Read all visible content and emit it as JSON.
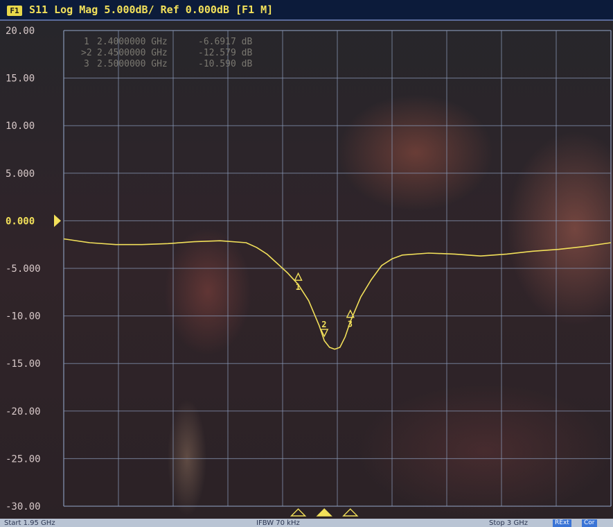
{
  "header": {
    "channel_badge": "F1",
    "trace_title": "S11 Log Mag 5.000dB/ Ref 0.000dB [F1 M]"
  },
  "footer": {
    "start": "Start 1.95 GHz",
    "ifbw": "IFBW 70 kHz",
    "stop": "Stop 3 GHz",
    "ext_button": "RExt",
    "cor_button": "Cor"
  },
  "colors": {
    "trace": "#f2e05a",
    "grid": "#8a9ab8",
    "header_bg": "#0c1b3a"
  },
  "chart_data": {
    "type": "line",
    "title": "S11 Log Mag 5.000dB/ Ref 0.000dB [F1 M]",
    "xlabel": "",
    "ylabel": "",
    "xlim": [
      1.95,
      3.0
    ],
    "ylim": [
      -30,
      20
    ],
    "ytick_labels": [
      "20.00",
      "15.00",
      "10.00",
      "5.000",
      "0.000",
      "-5.000",
      "-10.00",
      "-15.00",
      "-20.00",
      "-25.00",
      "-30.00"
    ],
    "ytick_values": [
      20,
      15,
      10,
      5,
      0,
      -5,
      -10,
      -15,
      -20,
      -25,
      -30
    ],
    "reference_value": 0,
    "grid": true,
    "series": [
      {
        "x": [
          1.95,
          2.0,
          2.05,
          2.1,
          2.15,
          2.2,
          2.25,
          2.3,
          2.32,
          2.34,
          2.36,
          2.38,
          2.4,
          2.42,
          2.44,
          2.45,
          2.46,
          2.47,
          2.48,
          2.49,
          2.5,
          2.52,
          2.54,
          2.56,
          2.58,
          2.6,
          2.65,
          2.7,
          2.75,
          2.8,
          2.85,
          2.9,
          2.95,
          3.0
        ],
        "y": [
          -1.9,
          -2.3,
          -2.5,
          -2.5,
          -2.4,
          -2.2,
          -2.1,
          -2.3,
          -2.8,
          -3.5,
          -4.5,
          -5.5,
          -6.7,
          -8.4,
          -11.0,
          -12.6,
          -13.3,
          -13.5,
          -13.3,
          -12.2,
          -10.6,
          -8.0,
          -6.2,
          -4.7,
          -4.0,
          -3.6,
          -3.4,
          -3.5,
          -3.7,
          -3.5,
          -3.2,
          -3.0,
          -2.7,
          -2.3
        ]
      }
    ],
    "markers": [
      {
        "id": "1",
        "active": false,
        "freq_label": "2.4000000 GHz",
        "value_label": "-6.6917 dB",
        "x": 2.4,
        "y": -6.6917
      },
      {
        "id": "2",
        "active": true,
        "freq_label": "2.4500000 GHz",
        "value_label": "-12.579 dB",
        "x": 2.45,
        "y": -12.579
      },
      {
        "id": "3",
        "active": false,
        "freq_label": "2.5000000 GHz",
        "value_label": "-10.590 dB",
        "x": 2.5,
        "y": -10.59
      }
    ]
  }
}
